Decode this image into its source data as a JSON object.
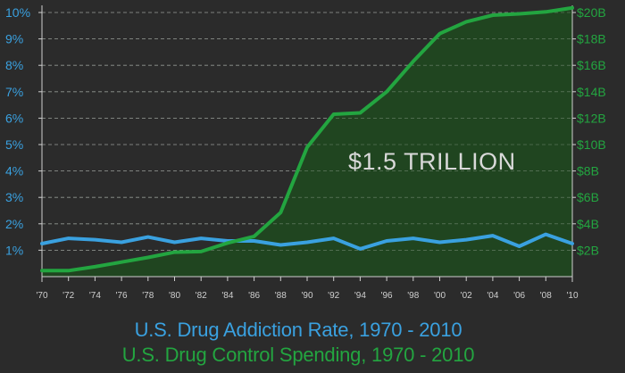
{
  "chart_data": {
    "type": "line",
    "title_line_1": "U.S. Drug Addiction Rate, 1970 - 2010",
    "title_line_2": "U.S. Drug Control Spending, 1970 - 2010",
    "annotation": "$1.5 TRILLION",
    "x_ticks": [
      "'70",
      "'72",
      "'74",
      "'76",
      "'78",
      "'80",
      "'82",
      "'84",
      "'86",
      "'88",
      "'90",
      "'92",
      "'94",
      "'96",
      "'98",
      "'00",
      "'02",
      "'04",
      "'06",
      "'08",
      "'10"
    ],
    "x_years": [
      1970,
      1972,
      1974,
      1976,
      1978,
      1980,
      1982,
      1984,
      1986,
      1988,
      1990,
      1992,
      1994,
      1996,
      1998,
      2000,
      2002,
      2004,
      2006,
      2008,
      2010
    ],
    "left_axis": {
      "ticks": [
        "10%",
        "9%",
        "8%",
        "7%",
        "6%",
        "5%",
        "4%",
        "3%",
        "2%",
        "1%"
      ],
      "tick_values": [
        10,
        9,
        8,
        7,
        6,
        5,
        4,
        3,
        2,
        1
      ],
      "range": [
        0,
        10
      ],
      "color": "#3aa1e0"
    },
    "right_axis": {
      "ticks": [
        "$20B",
        "$18B",
        "$16B",
        "$14B",
        "$12B",
        "$10B",
        "$8B",
        "$6B",
        "$4B",
        "$2B"
      ],
      "tick_values": [
        20,
        18,
        16,
        14,
        12,
        10,
        8,
        6,
        4,
        2
      ],
      "range": [
        0,
        20
      ],
      "color": "#23a540"
    },
    "grid": true,
    "series": [
      {
        "axis": "left",
        "color": "#3aa1e0",
        "x": [
          1970,
          1972,
          1974,
          1976,
          1978,
          1980,
          1982,
          1984,
          1986,
          1988,
          1990,
          1992,
          1994,
          1996,
          1998,
          2000,
          2002,
          2004,
          2006,
          2008,
          2010
        ],
        "values": [
          1.25,
          1.45,
          1.4,
          1.3,
          1.5,
          1.3,
          1.45,
          1.35,
          1.35,
          1.2,
          1.3,
          1.45,
          1.05,
          1.35,
          1.45,
          1.3,
          1.4,
          1.55,
          1.15,
          1.6,
          1.25
        ]
      },
      {
        "axis": "right",
        "color": "#23a540",
        "x": [
          1970,
          1972,
          1974,
          1976,
          1978,
          1980,
          1982,
          1984,
          1986,
          1988,
          1990,
          1992,
          1994,
          1996,
          1998,
          2000,
          2002,
          2004,
          2006,
          2008,
          2010
        ],
        "values": [
          0.45,
          0.45,
          0.75,
          1.1,
          1.45,
          1.85,
          1.9,
          2.55,
          3.05,
          4.85,
          9.8,
          12.3,
          12.4,
          14.0,
          16.3,
          18.4,
          19.3,
          19.8,
          19.9,
          20.05,
          20.35
        ]
      }
    ]
  }
}
